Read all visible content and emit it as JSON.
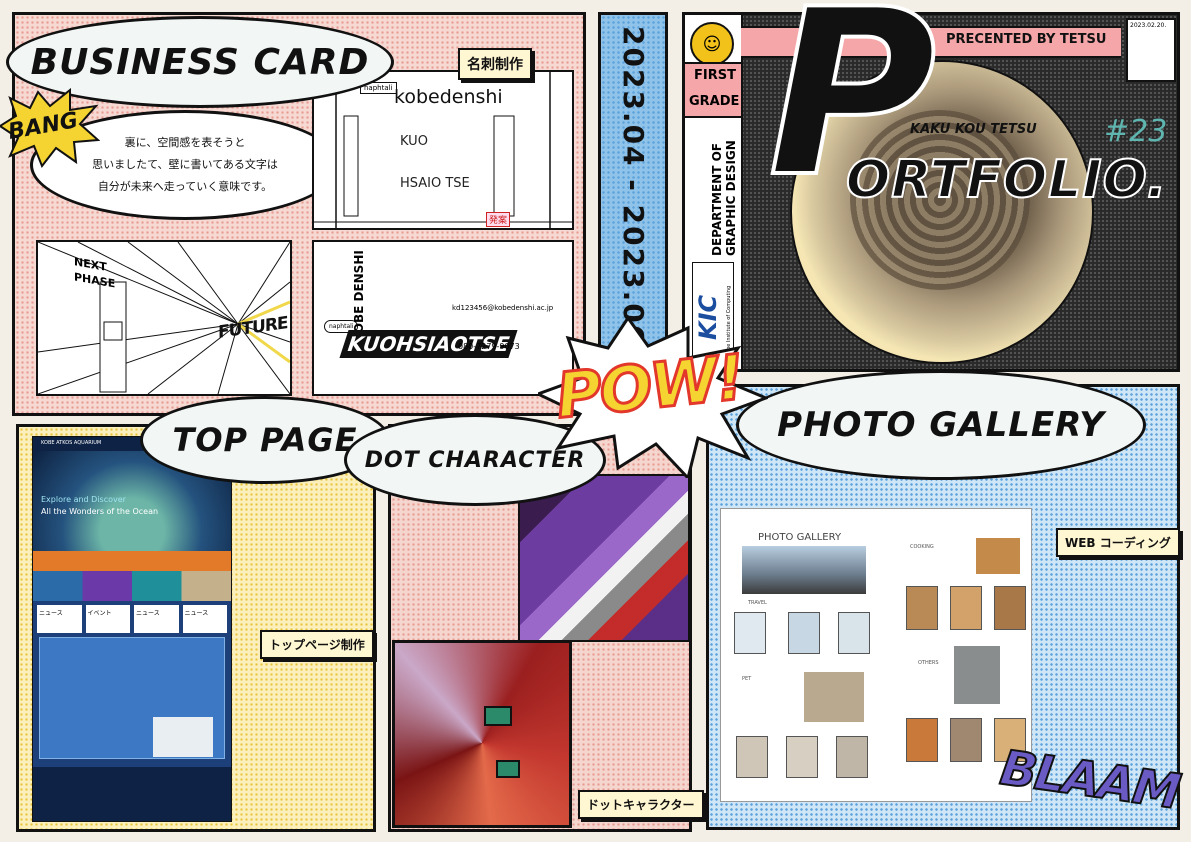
{
  "business_card": {
    "bubble_title": "BUSINESS CARD",
    "tag": "名刺制作",
    "sfx": "BANG",
    "description_lines": [
      "裏に、空間感を表そうと",
      "思いましたて、壁に書いてある文字は",
      "自分が未来へ走っていく意味です。"
    ],
    "card_front": {
      "brand": "kobedenshi",
      "logo": "naphtali",
      "name_1": "KUO",
      "name_2": "HSAIO TSE",
      "stamp": "発案"
    },
    "card_back": {
      "wall_1": "NEXT",
      "wall_2": "PHASE",
      "floor": "FUTURE"
    },
    "card_3d": {
      "school": "KOBE DENSHI",
      "name": "KUOHSIAOTSE",
      "email": "kd123456@kobedenshi.ac.jp",
      "phone": "080-7279-9073",
      "logo": "naphtali"
    }
  },
  "date_strip": {
    "text": "2023.04 - 2023.06"
  },
  "cover": {
    "badge_date": "2023.02.20.",
    "presenter": "PRECENTED BY TETSU",
    "grade_1": "FIRST",
    "grade_2": "GRADE",
    "department_1": "DEPARTMENT OF",
    "department_2": "GRAPHIC DESIGN",
    "school_logo": "KIC",
    "school_name": "Kobe Institute of Computing",
    "big_letter": "P",
    "title": "ORTFOLIO.",
    "author": "KAKU KOU TETSU",
    "issue": "#23"
  },
  "top_page": {
    "bubble_title": "TOP PAGE",
    "tag": "トップページ制作",
    "site_name": "KOBE ATKOS AQUARIUM",
    "hero_line_1": "Explore and Discover",
    "hero_line_2": "All the Wonders of the Ocean",
    "menu_items": [
      "ニュース",
      "イベント",
      "ニュース",
      "ニュース"
    ]
  },
  "dot_character": {
    "bubble_title": "DOT CHARACTER",
    "tag": "ドットキャラクター"
  },
  "sfx": {
    "pow": "POW!",
    "blaam": "BLAAM"
  },
  "photo_gallery": {
    "bubble_title": "PHOTO GALLERY",
    "tag": "WEB コーディング",
    "page_title": "PHOTO GALLERY",
    "sections": [
      "TRAVEL",
      "PET",
      "COOKING",
      "OTHERS"
    ]
  },
  "colors": {
    "pow_red": "#e2372a",
    "pow_yellow": "#f5d431",
    "blaam_purple": "#6a5bc4",
    "blue_strip": "#8fc3ea",
    "cover_pink": "#f4a6a8",
    "gold": "#f2c21a"
  }
}
